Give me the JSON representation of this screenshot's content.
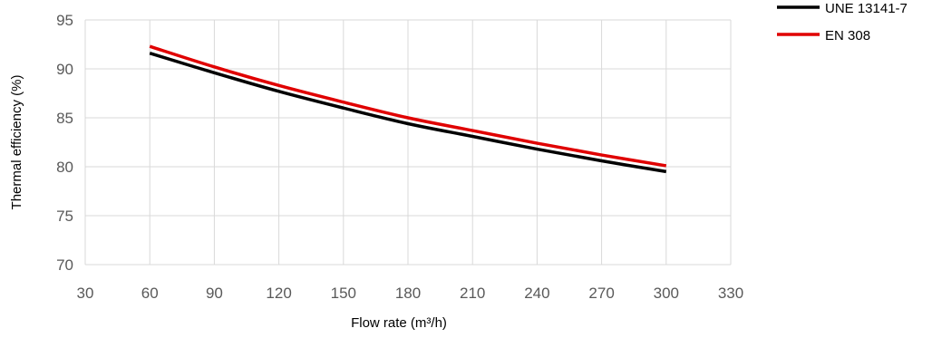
{
  "chart_data": {
    "type": "line",
    "title": "",
    "xlabel": "Flow rate  (m³/h)",
    "ylabel": "Thermal efficiency (%)",
    "xlim": [
      30,
      330
    ],
    "ylim": [
      70,
      95
    ],
    "x_ticks": [
      "30",
      "60",
      "90",
      "120",
      "150",
      "180",
      "210",
      "240",
      "270",
      "300",
      "330"
    ],
    "y_ticks": [
      "70",
      "75",
      "80",
      "85",
      "90",
      "95"
    ],
    "grid": "vertical and horizontal",
    "legend_position": "top-right",
    "series": [
      {
        "name": "UNE 13141-7",
        "color": "#000000",
        "points": [
          [
            60,
            91.6
          ],
          [
            90,
            89.6
          ],
          [
            120,
            87.7
          ],
          [
            150,
            86.0
          ],
          [
            180,
            84.4
          ],
          [
            210,
            83.1
          ],
          [
            240,
            81.8
          ],
          [
            270,
            80.6
          ],
          [
            300,
            79.5
          ]
        ]
      },
      {
        "name": "EN 308",
        "color": "#e00000",
        "points": [
          [
            60,
            92.3
          ],
          [
            90,
            90.2
          ],
          [
            120,
            88.3
          ],
          [
            150,
            86.6
          ],
          [
            180,
            85.0
          ],
          [
            210,
            83.7
          ],
          [
            240,
            82.4
          ],
          [
            270,
            81.2
          ],
          [
            300,
            80.1
          ]
        ]
      }
    ]
  }
}
